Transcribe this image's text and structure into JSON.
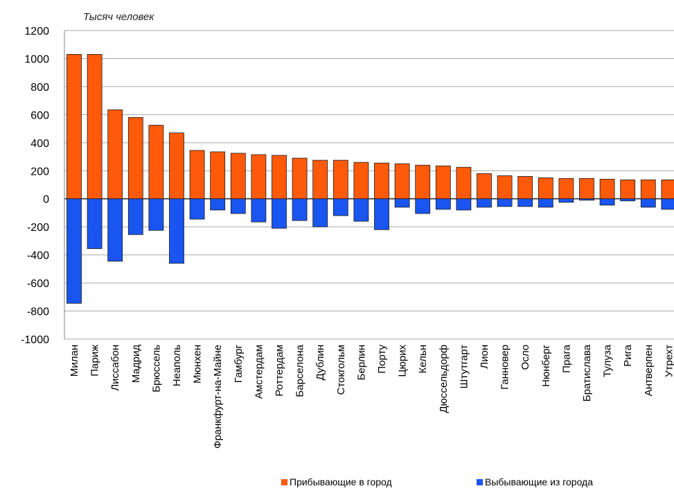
{
  "chart_data": {
    "type": "bar",
    "title": "",
    "unit_label": "Тысяч человек",
    "xlabel": "",
    "ylabel": "",
    "ylim": [
      -1000,
      1200
    ],
    "yticks": [
      "1200",
      "1000",
      "800",
      "600",
      "400",
      "200",
      "0",
      "-200",
      "-400",
      "-600",
      "-800",
      "-1000"
    ],
    "grid": true,
    "legend_position": "bottom-right",
    "categories": [
      "Милан",
      "Париж",
      "Лиссабон",
      "Мадрид",
      "Брюссель",
      "Неаполь",
      "Мюнхен",
      "Франкфурт-на-Майне",
      "Гамбург",
      "Амстердам",
      "Роттердам",
      "Барселона",
      "Дублин",
      "Стокгольм",
      "Берлин",
      "Порту",
      "Цюрих",
      "Кельн",
      "Дюссельдорф",
      "Штутгарт",
      "Лион",
      "Ганновер",
      "Осло",
      "Нюнберг",
      "Прага",
      "Братислава",
      "Тулуза",
      "Рига",
      "Антверпен",
      "Утрехт"
    ],
    "series": [
      {
        "name": "Прибывающие в город",
        "color": "#FF5A0A",
        "values": [
          1030,
          1030,
          635,
          580,
          525,
          470,
          345,
          335,
          325,
          315,
          310,
          290,
          275,
          275,
          260,
          255,
          250,
          240,
          235,
          225,
          180,
          165,
          160,
          150,
          145,
          145,
          140,
          135,
          135,
          135
        ]
      },
      {
        "name": "Выбывающие из города",
        "color": "#1A55F0",
        "values": [
          -745,
          -355,
          -445,
          -255,
          -225,
          -460,
          -145,
          -80,
          -105,
          -165,
          -210,
          -155,
          -200,
          -120,
          -160,
          -220,
          -60,
          -105,
          -75,
          -80,
          -60,
          -55,
          -55,
          -60,
          -25,
          -10,
          -45,
          -15,
          -60,
          -75
        ]
      }
    ]
  }
}
